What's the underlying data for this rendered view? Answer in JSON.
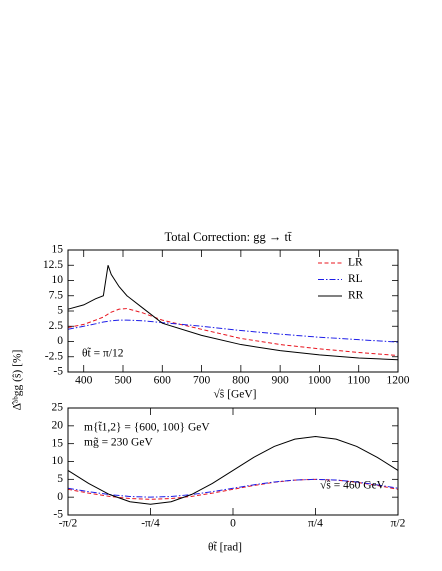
{
  "chart_data": [
    {
      "type": "line",
      "title": "Total Correction:  gg → tt̄",
      "ylabel": "Δ̂ᵃᵇgg (ŝ)  [%]",
      "xlabel": "√ŝ  [GeV]",
      "annotations": [
        "θt̃ = π/12"
      ],
      "x": [
        360,
        400,
        430,
        450,
        462,
        470,
        490,
        510,
        550,
        600,
        700,
        800,
        900,
        1000,
        1100,
        1200
      ],
      "series": [
        {
          "name": "LR",
          "color": "#e8141e",
          "linestyle": "dashed",
          "values": [
            2.3,
            2.8,
            3.5,
            4.0,
            4.5,
            4.8,
            5.3,
            5.4,
            4.7,
            3.5,
            2.0,
            0.5,
            -0.5,
            -1.2,
            -1.8,
            -2.3
          ]
        },
        {
          "name": "RL",
          "color": "#1e1ee8",
          "linestyle": "dashdot",
          "values": [
            2.0,
            2.5,
            2.9,
            3.2,
            3.3,
            3.4,
            3.5,
            3.5,
            3.4,
            3.1,
            2.5,
            1.8,
            1.2,
            0.7,
            0.3,
            -0.1
          ]
        },
        {
          "name": "RR",
          "color": "#000000",
          "linestyle": "solid",
          "values": [
            5.3,
            6.0,
            7.0,
            7.5,
            12.5,
            11.0,
            9.0,
            7.5,
            5.5,
            3.0,
            1.0,
            -0.5,
            -1.5,
            -2.2,
            -2.7,
            -3.0
          ]
        }
      ],
      "xlim": [
        360,
        1200
      ],
      "xticks": [
        400,
        500,
        600,
        700,
        800,
        900,
        1000,
        1100,
        1200
      ],
      "ylim": [
        -5,
        15
      ],
      "yticks": [
        15,
        12.5,
        10,
        7.5,
        5,
        2.5,
        0,
        -2.5,
        -5
      ],
      "legend": "upper right"
    },
    {
      "type": "line",
      "xlabel": "θt̃ [rad]",
      "annotations": [
        "m{t̃1,2} = {600, 100} GeV",
        "mg̃ = 230 GeV",
        "√ŝ = 460 GeV"
      ],
      "x": [
        -1.5708,
        -1.3744,
        -1.1781,
        -0.9817,
        -0.7854,
        -0.589,
        -0.3927,
        -0.1963,
        0,
        0.1963,
        0.3927,
        0.589,
        0.7854,
        0.9817,
        1.1781,
        1.3744,
        1.5708
      ],
      "series": [
        {
          "name": "LR",
          "color": "#e8141e",
          "linestyle": "dashed",
          "values": [
            2.2,
            1.13,
            0.22,
            -0.39,
            -0.6,
            -0.39,
            0.22,
            1.13,
            2.2,
            3.27,
            4.18,
            4.79,
            5,
            4.79,
            4.18,
            3.27,
            2.2
          ]
        },
        {
          "name": "RL",
          "color": "#1e1ee8",
          "linestyle": "dashdot",
          "values": [
            2.5,
            1.54,
            0.73,
            0.19,
            0,
            0.19,
            0.73,
            1.54,
            2.5,
            3.46,
            4.27,
            4.81,
            5,
            4.81,
            4.27,
            3.46,
            2.5
          ]
        },
        {
          "name": "RR",
          "color": "#000000",
          "linestyle": "solid",
          "values": [
            7.5,
            3.86,
            0.78,
            -1.28,
            -2,
            -1.28,
            0.78,
            3.86,
            7.5,
            11.14,
            14.22,
            16.28,
            17,
            16.28,
            14.22,
            11.14,
            7.5
          ]
        }
      ],
      "xlim": [
        -1.5708,
        1.5708
      ],
      "xticks": [
        {
          "value": -1.5708,
          "label": "-π/2"
        },
        {
          "value": -0.7854,
          "label": "-π/4"
        },
        {
          "value": 0,
          "label": "0"
        },
        {
          "value": 0.7854,
          "label": "π/4"
        },
        {
          "value": 1.5708,
          "label": "π/2"
        }
      ],
      "ylim": [
        -5,
        25
      ],
      "yticks": [
        25,
        20,
        15,
        10,
        5,
        0,
        -5
      ]
    }
  ]
}
